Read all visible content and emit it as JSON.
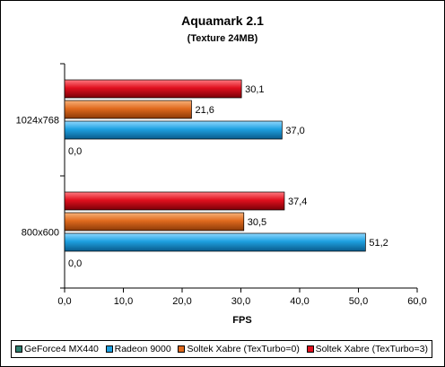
{
  "chart_data": {
    "type": "bar",
    "orientation": "horizontal",
    "title": "Aquamark 2.1",
    "subtitle": "(Texture 24MB)",
    "xlabel": "FPS",
    "ylabel": "",
    "xlim": [
      0,
      60
    ],
    "x_ticks": [
      "0,0",
      "10,0",
      "20,0",
      "30,0",
      "40,0",
      "50,0",
      "60,0"
    ],
    "x_tick_values": [
      0,
      10,
      20,
      30,
      40,
      50,
      60
    ],
    "categories": [
      "1024x768",
      "800x600"
    ],
    "series": [
      {
        "name": "GeForce4 MX440",
        "color": "#2e7d6e",
        "values": [
          0.0,
          0.0
        ],
        "labels": [
          "0,0",
          "0,0"
        ]
      },
      {
        "name": "Radeon 9000",
        "color": "#1ea0e0",
        "values": [
          37.0,
          51.2
        ],
        "labels": [
          "37,0",
          "51,2"
        ]
      },
      {
        "name": "Soltek Xabre (TexTurbo=0)",
        "color": "#e06a1e",
        "values": [
          21.6,
          30.5
        ],
        "labels": [
          "21,6",
          "30,5"
        ]
      },
      {
        "name": "Soltek Xabre (TexTurbo=3)",
        "color": "#e0101e",
        "values": [
          30.1,
          37.4
        ],
        "labels": [
          "30,1",
          "37,4"
        ]
      }
    ],
    "grid": false,
    "legend_position": "bottom"
  }
}
